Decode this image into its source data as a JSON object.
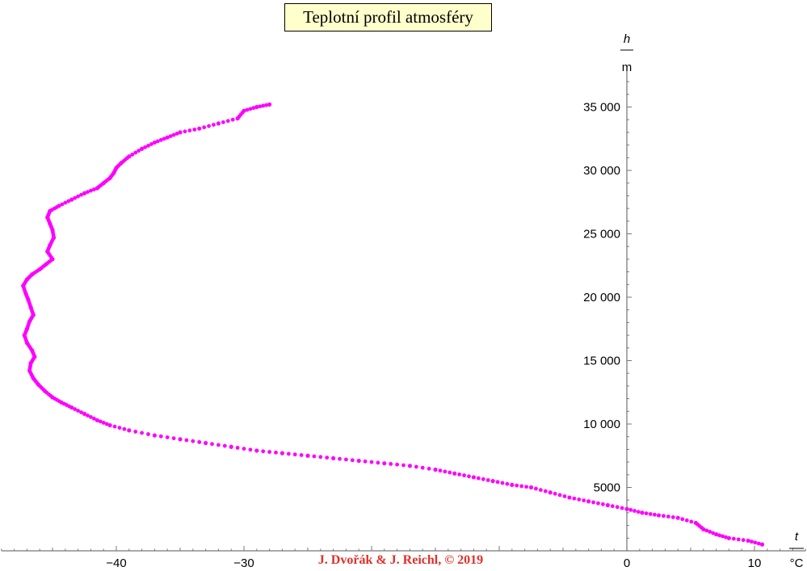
{
  "chart_data": {
    "type": "scatter",
    "title": "Teplotní profil atmosféry",
    "xlabel_var": "t",
    "xlabel_unit": "°C",
    "ylabel_var": "h",
    "ylabel_unit": "m",
    "xlim": [
      -49,
      14
    ],
    "ylim": [
      0,
      38000
    ],
    "x_ticks": [
      -40,
      -30,
      0,
      10
    ],
    "x_tick_labels": [
      "−40",
      "−30",
      "0",
      "10"
    ],
    "y_ticks": [
      5000,
      10000,
      15000,
      20000,
      25000,
      30000,
      35000
    ],
    "y_tick_labels": [
      "5000",
      "10 000",
      "15 000",
      "20 000",
      "25 000",
      "30 000",
      "35 000"
    ],
    "marker_color": "#ff00ff",
    "grid": false,
    "series": [
      {
        "x": [
          10.6,
          9.5,
          8.0,
          7.0,
          6.0,
          5.4,
          4.0,
          2.5,
          1.2,
          0.0,
          -1.5,
          -3.0,
          -4.5,
          -6.0,
          -7.5,
          -9.0,
          -10.5,
          -12.0,
          -13.5,
          -15.0,
          -17.0,
          -19.0,
          -21.0,
          -23.0,
          -25.0,
          -27.0,
          -29.0,
          -31.0,
          -33.0,
          -35.0,
          -37.0,
          -39.0,
          -40.5,
          -41.5,
          -42.5,
          -43.5,
          -44.3,
          -45.0,
          -45.6,
          -46.1,
          -46.5,
          -46.8,
          -46.7,
          -46.4,
          -46.6,
          -47.0,
          -47.2,
          -47.0,
          -46.8,
          -46.5,
          -46.7,
          -46.9,
          -47.1,
          -47.3,
          -47.0,
          -46.6,
          -46.0,
          -45.5,
          -45.0,
          -45.4,
          -45.2,
          -44.9,
          -45.0,
          -45.2,
          -45.4,
          -45.2,
          -44.5,
          -43.5,
          -42.5,
          -41.5,
          -41.0,
          -40.5,
          -40.2,
          -40.0,
          -39.6,
          -39.0,
          -38.0,
          -37.0,
          -36.0,
          -35.0,
          -33.5,
          -32.0,
          -30.5,
          -30.0,
          -29.0,
          -28.0
        ],
        "y": [
          500,
          800,
          1000,
          1300,
          1700,
          2200,
          2600,
          2800,
          3000,
          3300,
          3600,
          3900,
          4200,
          4600,
          5000,
          5200,
          5500,
          5800,
          6100,
          6400,
          6700,
          6900,
          7100,
          7300,
          7500,
          7700,
          7900,
          8200,
          8500,
          8800,
          9100,
          9500,
          9900,
          10300,
          10800,
          11300,
          11700,
          12100,
          12600,
          13100,
          13600,
          14200,
          14800,
          15300,
          15800,
          16400,
          17000,
          17500,
          18100,
          18600,
          19200,
          19800,
          20300,
          20900,
          21400,
          21800,
          22200,
          22600,
          23000,
          23600,
          24100,
          24700,
          25300,
          25800,
          26300,
          26800,
          27200,
          27700,
          28200,
          28600,
          29000,
          29400,
          29800,
          30200,
          30600,
          31100,
          31700,
          32200,
          32600,
          33000,
          33300,
          33700,
          34100,
          34700,
          35000,
          35200
        ]
      }
    ]
  },
  "credit": "J. Dvořák & J. Reichl, © 2019"
}
